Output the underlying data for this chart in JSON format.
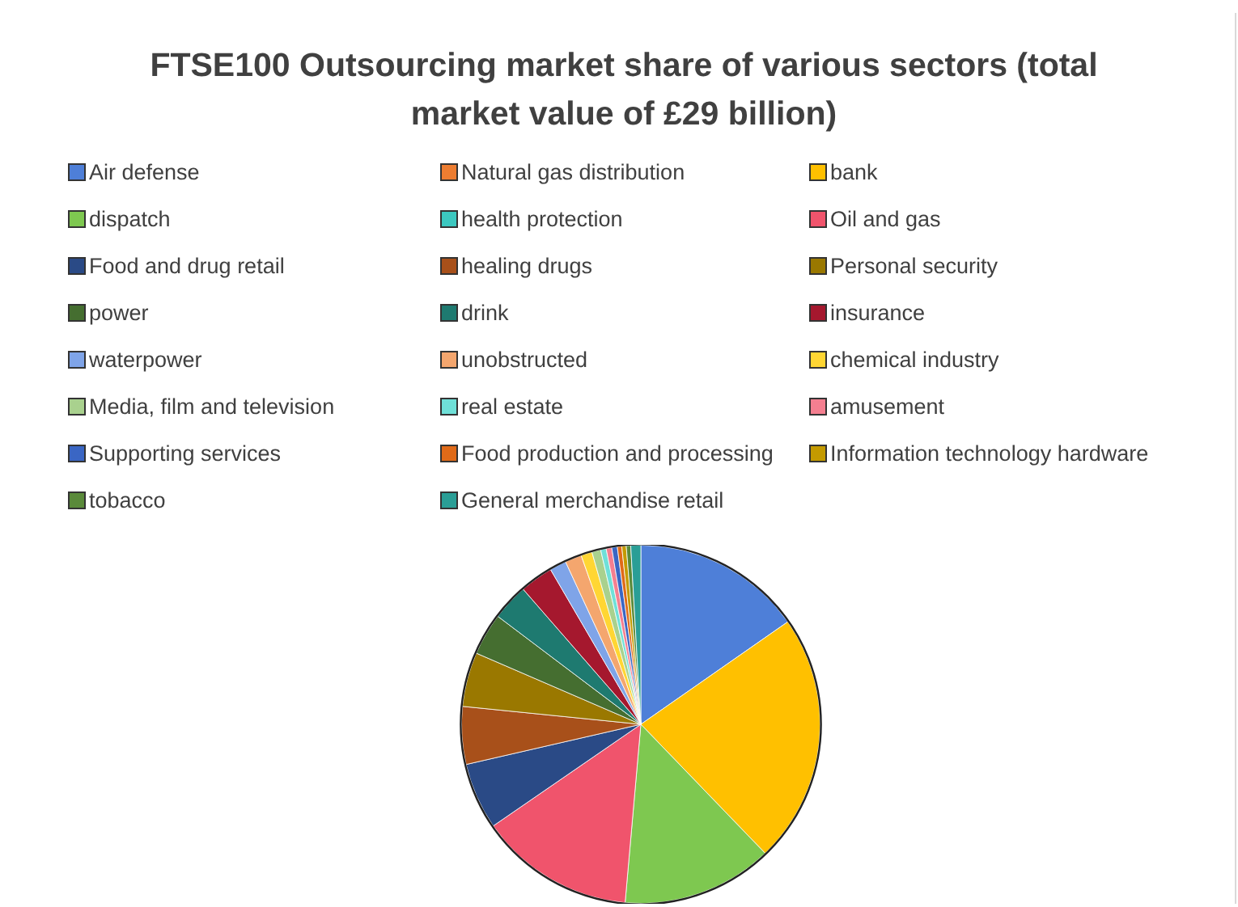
{
  "chart_data": {
    "type": "pie",
    "title": "FTSE100 Outsourcing market share of various sectors (total market value of £29 billion)",
    "categories": [
      "Air defense",
      "Natural gas distribution",
      "bank",
      "dispatch",
      "health protection",
      "Oil and gas",
      "Food and drug retail",
      "healing drugs",
      "Personal security",
      "power",
      "drink",
      "insurance",
      "waterpower",
      "unobstructed",
      "chemical industry",
      "Media, film and television",
      "real estate",
      "amusement",
      "Supporting services",
      "Food production and processing",
      "Information technology hardware",
      "tobacco",
      "General merchandise retail"
    ],
    "values": [
      15.3,
      null,
      22.5,
      13.6,
      null,
      14.0,
      6.0,
      5.2,
      4.9,
      3.8,
      3.3,
      3.0,
      1.5,
      1.5,
      1.0,
      0.8,
      0.5,
      0.5,
      0.5,
      0.4,
      0.4,
      0.4,
      0.9
    ],
    "colors": [
      "#4e7fd8",
      "#ed7d31",
      "#ffc000",
      "#7ec850",
      "#3cc8c0",
      "#f0546c",
      "#2a4a86",
      "#a8501a",
      "#9a7800",
      "#456e30",
      "#1e7a70",
      "#a5182e",
      "#7fa4e8",
      "#f4a66e",
      "#ffd633",
      "#a9d18e",
      "#6fe0d8",
      "#f47f90",
      "#3a66c4",
      "#e06a18",
      "#c49a00",
      "#5a8a3a",
      "#2a9e96"
    ],
    "legend": "top"
  }
}
